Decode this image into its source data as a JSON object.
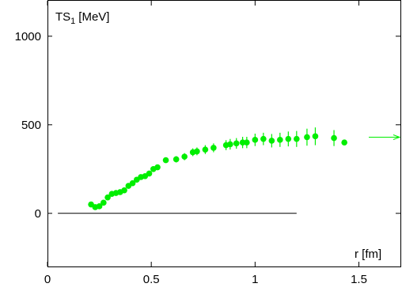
{
  "chart_data": {
    "type": "scatter",
    "title": "",
    "ylabel_main": "TS",
    "ylabel_sub": "1",
    "ylabel_unit": "[MeV]",
    "xlabel": "r [fm]",
    "xlim": [
      0,
      1.7
    ],
    "ylim": [
      -300,
      1200
    ],
    "xticks": [
      0,
      0.5,
      1,
      1.5
    ],
    "xtick_labels": [
      "0",
      "0.5",
      "1",
      "1.5"
    ],
    "yticks": [
      0,
      500,
      1000
    ],
    "ytick_labels": [
      "0",
      "500",
      "1000"
    ],
    "grid": false,
    "legend": "none",
    "marker_color": "#00ee00",
    "series": [
      {
        "x": [
          0.21,
          0.23,
          0.25,
          0.27,
          0.29,
          0.31,
          0.33,
          0.35,
          0.37,
          0.39,
          0.41,
          0.43,
          0.45,
          0.47,
          0.49,
          0.51,
          0.53,
          0.57,
          0.62,
          0.66,
          0.7,
          0.72,
          0.76,
          0.8,
          0.86,
          0.88,
          0.91,
          0.94,
          0.96,
          1.0,
          1.04,
          1.08,
          1.12,
          1.16,
          1.2,
          1.25,
          1.29,
          1.38,
          1.43
        ],
        "y": [
          50,
          35,
          40,
          60,
          90,
          110,
          115,
          120,
          130,
          155,
          170,
          190,
          205,
          210,
          225,
          250,
          260,
          300,
          305,
          320,
          345,
          350,
          360,
          370,
          385,
          390,
          395,
          400,
          400,
          415,
          420,
          410,
          415,
          420,
          420,
          430,
          435,
          425,
          400
        ],
        "yerr": [
          8,
          8,
          8,
          8,
          8,
          10,
          10,
          10,
          10,
          12,
          12,
          12,
          12,
          12,
          12,
          15,
          15,
          15,
          18,
          20,
          22,
          22,
          25,
          25,
          28,
          30,
          30,
          32,
          32,
          35,
          35,
          38,
          40,
          42,
          45,
          48,
          50,
          45,
          15
        ]
      }
    ],
    "reference_line": {
      "y": 0,
      "x_start": 0.05,
      "x_end": 1.2
    },
    "asymptote_arrow": {
      "y": 430
    }
  }
}
